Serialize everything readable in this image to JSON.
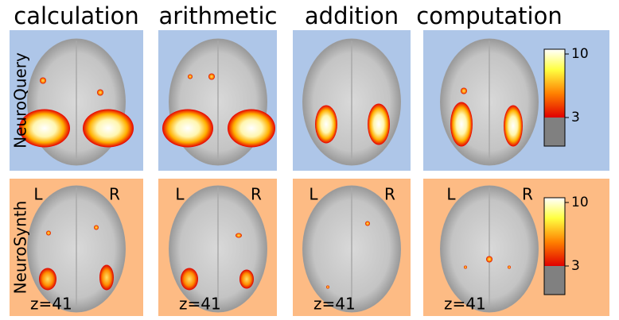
{
  "columns": [
    "calculation",
    "arithmetic",
    "addition",
    "computation"
  ],
  "rows": [
    {
      "label": "NeuroQuery",
      "colorbar_ticks": [
        10,
        3
      ]
    },
    {
      "label": "NeuroSynth",
      "left": "L",
      "right": "R",
      "slice": "z=41",
      "colorbar_ticks": [
        10,
        3
      ]
    }
  ]
}
